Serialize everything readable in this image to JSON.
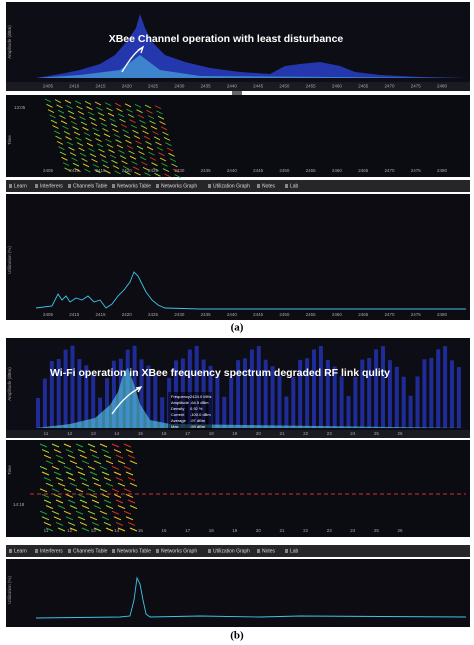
{
  "panel_a": {
    "annotation": "XBee Channel operation with least disturbance",
    "spectrum_y_label": "Amplitude (dBm)",
    "spectrum_x_ticks": [
      "2405",
      "2410",
      "2415",
      "2420",
      "2425",
      "2430",
      "2435",
      "2440",
      "2445",
      "2450",
      "2455",
      "2460",
      "2465",
      "2470",
      "2475",
      "2480"
    ],
    "waterfall_y_label": "Time",
    "waterfall_time": "13:05",
    "tabs": [
      "Learn",
      "Interferers",
      "Channels Table",
      "Networks Table",
      "Networks Graph",
      "Utilization Graph",
      "Notes",
      "Lab"
    ],
    "utilization_y_label": "Utilization (%)",
    "utilization_x_ticks": [
      "2405",
      "2410",
      "2415",
      "2420",
      "2425",
      "2430",
      "2435",
      "2440",
      "2445",
      "2450",
      "2455",
      "2460",
      "2465",
      "2470",
      "2475",
      "2480"
    ],
    "caption": "(a)"
  },
  "panel_b": {
    "annotation": "Wi-Fi operation in XBee frequency spectrum degraded RF link qulity",
    "spectrum_y_label": "Amplitude (dBm)",
    "readout": [
      [
        "Frequency",
        "2424.0 MHz"
      ],
      [
        "Amplitude",
        "-64.5 dBm"
      ],
      [
        "Density",
        "0.92 %"
      ],
      [
        "Current",
        "-100.0 dBm"
      ],
      [
        "Average",
        "-97 dBm"
      ],
      [
        "Max",
        "-59 dBm"
      ]
    ],
    "channel_ticks": [
      "11",
      "12",
      "13",
      "14",
      "15",
      "16",
      "17",
      "18",
      "19",
      "20",
      "21",
      "22",
      "23",
      "24",
      "25",
      "26"
    ],
    "waterfall_y_label": "Time",
    "waterfall_time": "14:18",
    "tabs": [
      "Learn",
      "Interferers",
      "Channels Table",
      "Networks Table",
      "Networks Graph",
      "Utilization Graph",
      "Notes",
      "Lab"
    ],
    "utilization_y_label": "Utilization (%)",
    "caption": "(b)"
  }
}
